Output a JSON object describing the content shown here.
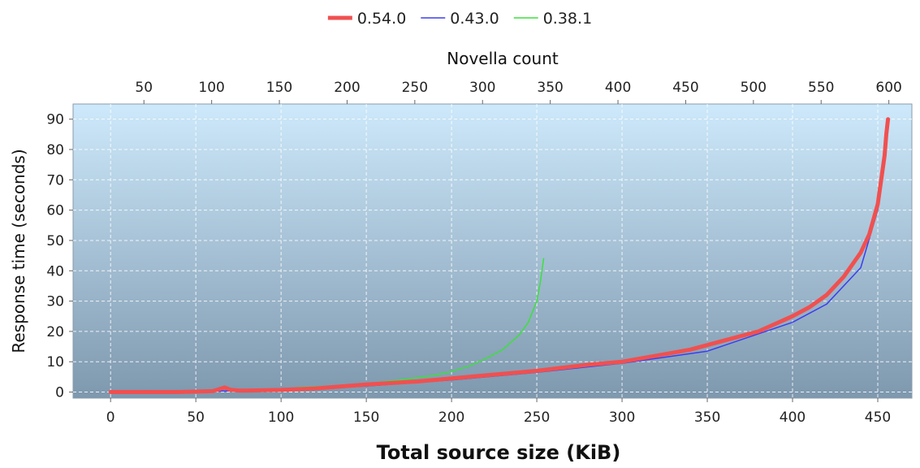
{
  "chart_data": {
    "type": "line",
    "xlabel": "Total source size (KiB)",
    "ylabel": "Response time (seconds)",
    "x2label": "Novella count",
    "xlim": [
      -22,
      470
    ],
    "ylim": [
      -2,
      95
    ],
    "x2lim": [
      -2.3,
      617
    ],
    "x_ticks": [
      "0",
      "50",
      "100",
      "150",
      "200",
      "250",
      "300",
      "350",
      "400",
      "450"
    ],
    "y_ticks": [
      "0",
      "10",
      "20",
      "30",
      "40",
      "50",
      "60",
      "70",
      "80",
      "90"
    ],
    "x2_ticks": [
      "50",
      "100",
      "150",
      "200",
      "250",
      "300",
      "350",
      "400",
      "450",
      "500",
      "550",
      "600"
    ],
    "grid": true,
    "legend_position": "top-center",
    "background_gradient": [
      "#cde9fb",
      "#7e98ae"
    ],
    "series": [
      {
        "name": "0.54.0",
        "color": "#f05050",
        "x": [
          0,
          20,
          40,
          60,
          67,
          70,
          75,
          80,
          100,
          120,
          150,
          180,
          200,
          220,
          250,
          280,
          300,
          320,
          340,
          360,
          380,
          400,
          410,
          420,
          430,
          440,
          445,
          450,
          452,
          454,
          455,
          456
        ],
        "y": [
          0,
          0,
          0,
          0.3,
          1.5,
          0.8,
          0.5,
          0.5,
          0.7,
          1.2,
          2.5,
          3.5,
          4.5,
          5.5,
          7,
          9,
          10,
          12,
          14,
          17,
          20,
          25,
          28,
          32,
          38,
          46,
          52,
          62,
          70,
          78,
          85,
          90
        ]
      },
      {
        "name": "0.43.0",
        "color": "#3b3ef0",
        "x": [
          0,
          50,
          100,
          150,
          200,
          250,
          300,
          350,
          400,
          420,
          440,
          450,
          454,
          455
        ],
        "y": [
          0,
          0.2,
          0.6,
          2,
          4,
          6.5,
          9.5,
          13.5,
          23,
          29,
          41,
          60,
          75,
          84
        ]
      },
      {
        "name": "0.38.1",
        "color": "#3ce03c",
        "x": [
          110,
          130,
          150,
          170,
          190,
          200,
          210,
          220,
          230,
          240,
          245,
          250,
          252,
          254
        ],
        "y": [
          1.5,
          2,
          2.8,
          4,
          5.5,
          6.8,
          8.5,
          11,
          14,
          19,
          23,
          30,
          36,
          44
        ]
      }
    ]
  }
}
